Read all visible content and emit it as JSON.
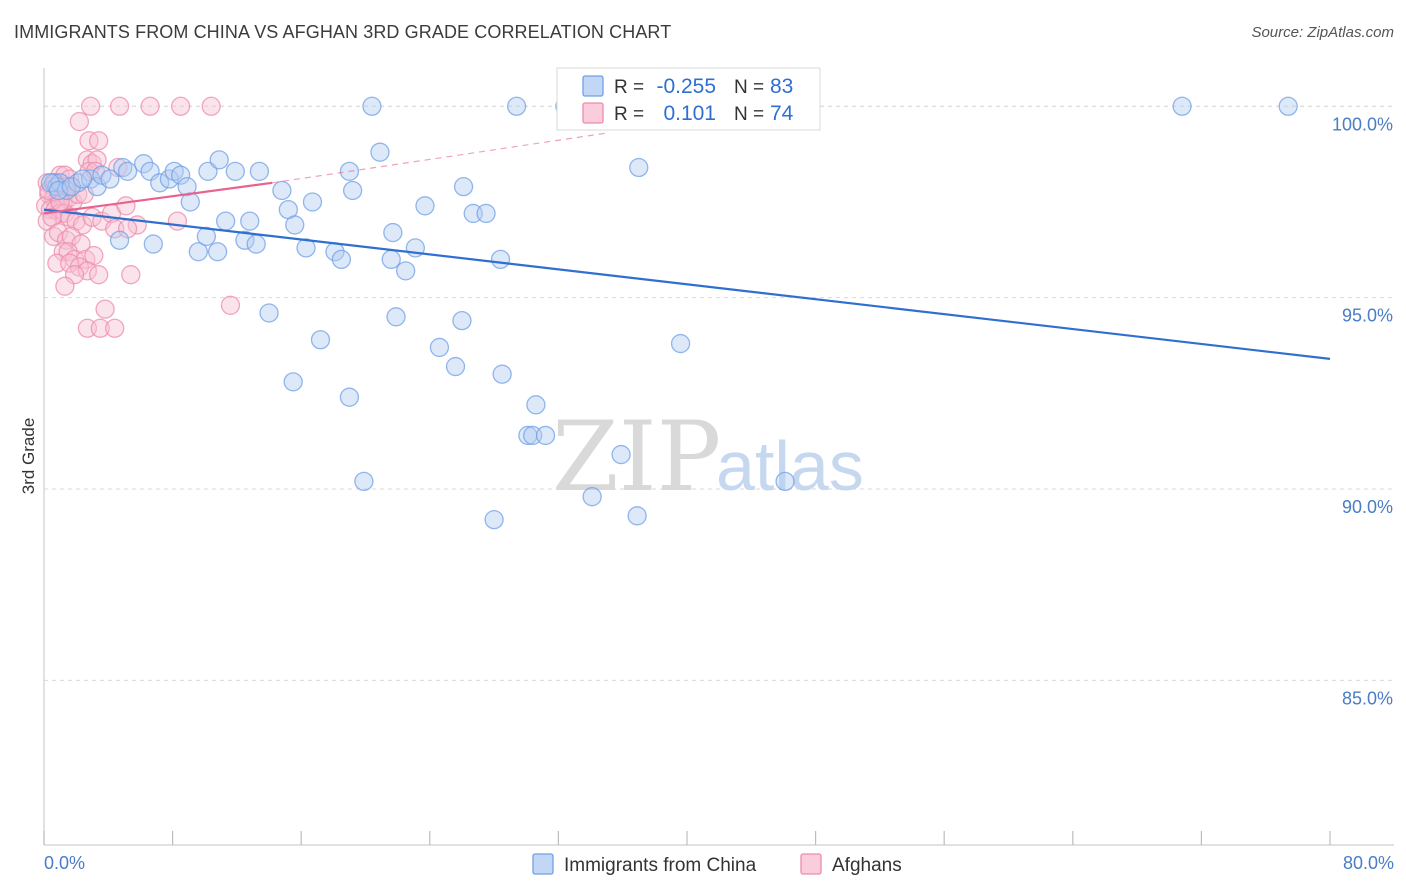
{
  "title": "IMMIGRANTS FROM CHINA VS AFGHAN 3RD GRADE CORRELATION CHART",
  "source": "Source: ZipAtlas.com",
  "watermark": {
    "zip": "ZIP",
    "atlas": "atlas"
  },
  "colors": {
    "china": "#6fa0e6",
    "china_fill": "#b3cdf2",
    "china_line": "#2f6fd0",
    "afghan": "#ee8aab",
    "afghan_fill": "#f7c1d3",
    "afghan_line": "#e8628f",
    "grid": "#d9d9d9",
    "tick_text": "#4a7cc7"
  },
  "stats_legend": [
    {
      "series": "Immigrants from China",
      "r_label": "R =",
      "r_value": "-0.255",
      "n_label": "N =",
      "n_value": "83"
    },
    {
      "series": "Afghans",
      "r_label": "R =",
      "r_value": "0.101",
      "n_label": "N =",
      "n_value": "74"
    }
  ],
  "chart_data": {
    "type": "scatter",
    "title": "IMMIGRANTS FROM CHINA VS AFGHAN 3RD GRADE CORRELATION CHART",
    "xlabel": "",
    "ylabel": "3rd Grade",
    "xlim": [
      0,
      80
    ],
    "ylim": [
      80.7,
      101.0
    ],
    "x_tick_labels": [
      "0.0%",
      "80.0%"
    ],
    "y_ticks": [
      85,
      90,
      95,
      100
    ],
    "y_tick_labels": [
      "85.0%",
      "90.0%",
      "95.0%",
      "100.0%"
    ],
    "legend": [
      "Immigrants from China",
      "Afghans"
    ],
    "series": [
      {
        "name": "Immigrants from China",
        "r": -0.255,
        "n": 83,
        "trend": {
          "x": [
            0,
            80
          ],
          "y": [
            97.3,
            93.4
          ],
          "style": "solid"
        },
        "points": [
          [
            20.4,
            100.0
          ],
          [
            29.4,
            100.0
          ],
          [
            32.4,
            100.0
          ],
          [
            34.5,
            100.0
          ],
          [
            70.8,
            100.0
          ],
          [
            77.4,
            100.0
          ],
          [
            0.6,
            98.0
          ],
          [
            0.8,
            97.9
          ],
          [
            1.0,
            98.0
          ],
          [
            1.4,
            97.8
          ],
          [
            2.1,
            98.0
          ],
          [
            2.9,
            98.1
          ],
          [
            3.3,
            97.9
          ],
          [
            3.6,
            98.2
          ],
          [
            4.1,
            98.1
          ],
          [
            4.9,
            98.4
          ],
          [
            5.2,
            98.3
          ],
          [
            6.2,
            98.5
          ],
          [
            6.6,
            98.3
          ],
          [
            7.2,
            98.0
          ],
          [
            7.8,
            98.1
          ],
          [
            8.1,
            98.3
          ],
          [
            8.5,
            98.2
          ],
          [
            8.9,
            97.9
          ],
          [
            9.1,
            97.5
          ],
          [
            10.2,
            98.3
          ],
          [
            10.9,
            98.6
          ],
          [
            11.9,
            98.3
          ],
          [
            13.4,
            98.3
          ],
          [
            14.8,
            97.8
          ],
          [
            11.3,
            97.0
          ],
          [
            12.8,
            97.0
          ],
          [
            15.2,
            97.3
          ],
          [
            15.6,
            96.9
          ],
          [
            16.7,
            97.5
          ],
          [
            19.0,
            98.3
          ],
          [
            19.2,
            97.8
          ],
          [
            20.9,
            98.8
          ],
          [
            23.7,
            97.4
          ],
          [
            26.1,
            97.9
          ],
          [
            26.7,
            97.2
          ],
          [
            27.5,
            97.2
          ],
          [
            4.7,
            96.5
          ],
          [
            6.8,
            96.4
          ],
          [
            9.6,
            96.2
          ],
          [
            10.1,
            96.6
          ],
          [
            10.8,
            96.2
          ],
          [
            12.5,
            96.5
          ],
          [
            13.2,
            96.4
          ],
          [
            16.3,
            96.3
          ],
          [
            18.1,
            96.2
          ],
          [
            18.5,
            96.0
          ],
          [
            21.6,
            96.0
          ],
          [
            21.7,
            96.7
          ],
          [
            22.5,
            95.7
          ],
          [
            23.1,
            96.3
          ],
          [
            28.4,
            96.0
          ],
          [
            14.0,
            94.6
          ],
          [
            17.2,
            93.9
          ],
          [
            21.9,
            94.5
          ],
          [
            24.6,
            93.7
          ],
          [
            25.6,
            93.2
          ],
          [
            26.0,
            94.4
          ],
          [
            28.5,
            93.0
          ],
          [
            39.6,
            93.8
          ],
          [
            15.5,
            92.8
          ],
          [
            19.0,
            92.4
          ],
          [
            30.6,
            92.2
          ],
          [
            30.1,
            91.4
          ],
          [
            30.4,
            91.4
          ],
          [
            31.2,
            91.4
          ],
          [
            35.9,
            90.9
          ],
          [
            19.9,
            90.2
          ],
          [
            46.1,
            90.2
          ],
          [
            34.1,
            89.8
          ],
          [
            28.0,
            89.2
          ],
          [
            36.9,
            89.3
          ],
          [
            37.0,
            98.4
          ],
          [
            35.2,
            100.0
          ],
          [
            0.4,
            98.0
          ],
          [
            0.9,
            97.8
          ],
          [
            1.7,
            97.9
          ],
          [
            2.4,
            98.1
          ]
        ]
      },
      {
        "name": "Afghans",
        "r": 0.101,
        "n": 74,
        "trend": {
          "x": [
            0,
            14.2
          ],
          "y": [
            97.2,
            98.0
          ],
          "style": "solid",
          "extended": {
            "x": [
              14.2,
              35.0
            ],
            "y": [
              98.0,
              99.3
            ],
            "style": "dashed"
          }
        },
        "points": [
          [
            2.9,
            100.0
          ],
          [
            4.7,
            100.0
          ],
          [
            6.6,
            100.0
          ],
          [
            8.5,
            100.0
          ],
          [
            10.4,
            100.0
          ],
          [
            2.2,
            99.6
          ],
          [
            2.8,
            99.1
          ],
          [
            3.4,
            99.1
          ],
          [
            2.7,
            98.6
          ],
          [
            3.0,
            98.5
          ],
          [
            3.3,
            98.6
          ],
          [
            2.8,
            98.3
          ],
          [
            3.2,
            98.3
          ],
          [
            1.0,
            98.2
          ],
          [
            1.3,
            98.2
          ],
          [
            1.6,
            98.1
          ],
          [
            0.2,
            98.0
          ],
          [
            0.5,
            97.9
          ],
          [
            0.8,
            97.9
          ],
          [
            1.1,
            97.8
          ],
          [
            0.3,
            97.7
          ],
          [
            0.6,
            97.6
          ],
          [
            0.9,
            97.6
          ],
          [
            1.2,
            97.5
          ],
          [
            1.5,
            97.6
          ],
          [
            1.8,
            97.5
          ],
          [
            2.1,
            97.7
          ],
          [
            0.1,
            97.4
          ],
          [
            0.4,
            97.3
          ],
          [
            0.7,
            97.3
          ],
          [
            1.0,
            97.2
          ],
          [
            1.3,
            97.2
          ],
          [
            1.6,
            97.1
          ],
          [
            0.2,
            97.0
          ],
          [
            0.5,
            97.1
          ],
          [
            2.0,
            97.0
          ],
          [
            2.4,
            96.9
          ],
          [
            3.0,
            97.1
          ],
          [
            3.6,
            97.0
          ],
          [
            4.2,
            97.2
          ],
          [
            5.1,
            97.4
          ],
          [
            4.4,
            96.8
          ],
          [
            5.8,
            96.9
          ],
          [
            8.3,
            97.0
          ],
          [
            0.6,
            96.6
          ],
          [
            0.9,
            96.7
          ],
          [
            1.4,
            96.5
          ],
          [
            1.7,
            96.6
          ],
          [
            2.3,
            96.4
          ],
          [
            1.2,
            96.2
          ],
          [
            1.5,
            96.2
          ],
          [
            1.9,
            96.0
          ],
          [
            2.6,
            96.0
          ],
          [
            3.1,
            96.1
          ],
          [
            0.8,
            95.9
          ],
          [
            1.6,
            95.9
          ],
          [
            2.2,
            95.8
          ],
          [
            2.7,
            95.7
          ],
          [
            3.4,
            95.6
          ],
          [
            1.9,
            95.6
          ],
          [
            1.3,
            95.3
          ],
          [
            5.4,
            95.6
          ],
          [
            3.8,
            94.7
          ],
          [
            2.7,
            94.2
          ],
          [
            3.5,
            94.2
          ],
          [
            4.4,
            94.2
          ],
          [
            11.6,
            94.8
          ],
          [
            5.2,
            96.8
          ],
          [
            1.0,
            97.5
          ],
          [
            0.3,
            97.8
          ],
          [
            0.7,
            98.0
          ],
          [
            1.4,
            97.9
          ],
          [
            2.5,
            97.7
          ],
          [
            4.6,
            98.4
          ]
        ]
      }
    ]
  }
}
